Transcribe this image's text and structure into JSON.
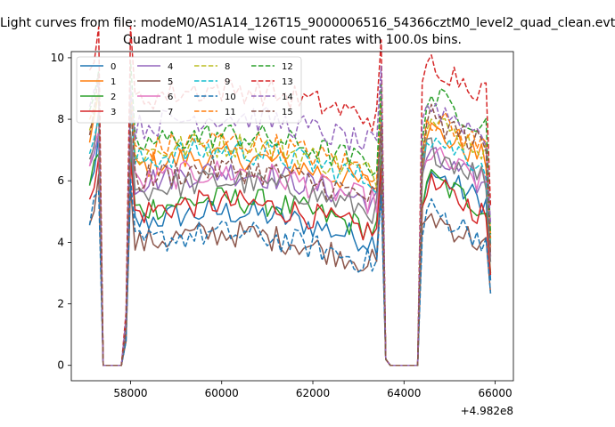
{
  "figure": {
    "suptitle": "Light curves from file: modeM0/AS1A14_126T15_9000006516_54366cztM0_level2_quad_clean.evt"
  },
  "chart_data": {
    "type": "line",
    "title": "Quadrant 1 module wise count rates with 100.0s bins.",
    "xlabel": "",
    "ylabel": "",
    "x_offset_label": "+4.982e8",
    "xlim": [
      56700,
      66400
    ],
    "ylim": [
      -0.5,
      10.2
    ],
    "xticks": [
      58000,
      60000,
      62000,
      64000,
      66000
    ],
    "yticks": [
      0,
      2,
      4,
      6,
      8,
      10
    ],
    "grid": false,
    "legend": {
      "placement": "top-left",
      "columns": 4
    },
    "series": [
      {
        "name": "0",
        "color": "#1f77b4",
        "dash": "solid",
        "level": 4.6,
        "peak": 5.8
      },
      {
        "name": "1",
        "color": "#ff7f0e",
        "dash": "solid",
        "level": 6.4,
        "peak": 7.2
      },
      {
        "name": "2",
        "color": "#2ca02c",
        "dash": "solid",
        "level": 5.0,
        "peak": 5.6
      },
      {
        "name": "3",
        "color": "#d62728",
        "dash": "solid",
        "level": 4.9,
        "peak": 5.4
      },
      {
        "name": "4",
        "color": "#9467bd",
        "dash": "solid",
        "level": 5.9,
        "peak": 6.3
      },
      {
        "name": "5",
        "color": "#8c564b",
        "dash": "solid",
        "level": 3.9,
        "peak": 4.4
      },
      {
        "name": "6",
        "color": "#e377c2",
        "dash": "solid",
        "level": 5.9,
        "peak": 6.4
      },
      {
        "name": "7",
        "color": "#7f7f7f",
        "dash": "solid",
        "level": 5.6,
        "peak": 6.6
      },
      {
        "name": "8",
        "color": "#bcbd22",
        "dash": "dashed",
        "level": 6.8,
        "peak": 7.5
      },
      {
        "name": "9",
        "color": "#17becf",
        "dash": "dashed",
        "level": 6.6,
        "peak": 7.0
      },
      {
        "name": "10",
        "color": "#1f77b4",
        "dash": "dashed",
        "level": 3.9,
        "peak": 4.6
      },
      {
        "name": "11",
        "color": "#ff7f0e",
        "dash": "dashed",
        "level": 6.9,
        "peak": 7.6
      },
      {
        "name": "12",
        "color": "#2ca02c",
        "dash": "dashed",
        "level": 7.1,
        "peak": 8.3
      },
      {
        "name": "13",
        "color": "#d62728",
        "dash": "dashed",
        "level": 8.6,
        "peak": 9.4
      },
      {
        "name": "14",
        "color": "#9467bd",
        "dash": "dashed",
        "level": 7.7,
        "peak": 8.0
      },
      {
        "name": "15",
        "color": "#8c564b",
        "dash": "dashed",
        "level": 6.0,
        "peak": 7.6
      }
    ],
    "segments": [
      {
        "x_start": 57100,
        "x_end": 57400,
        "profile": "start"
      },
      {
        "x_start": 57400,
        "x_end": 57900,
        "profile": "zero"
      },
      {
        "x_start": 57900,
        "x_end": 63500,
        "profile": "main"
      },
      {
        "x_start": 63500,
        "x_end": 64400,
        "profile": "zero"
      },
      {
        "x_start": 64400,
        "x_end": 65900,
        "profile": "end"
      }
    ]
  }
}
